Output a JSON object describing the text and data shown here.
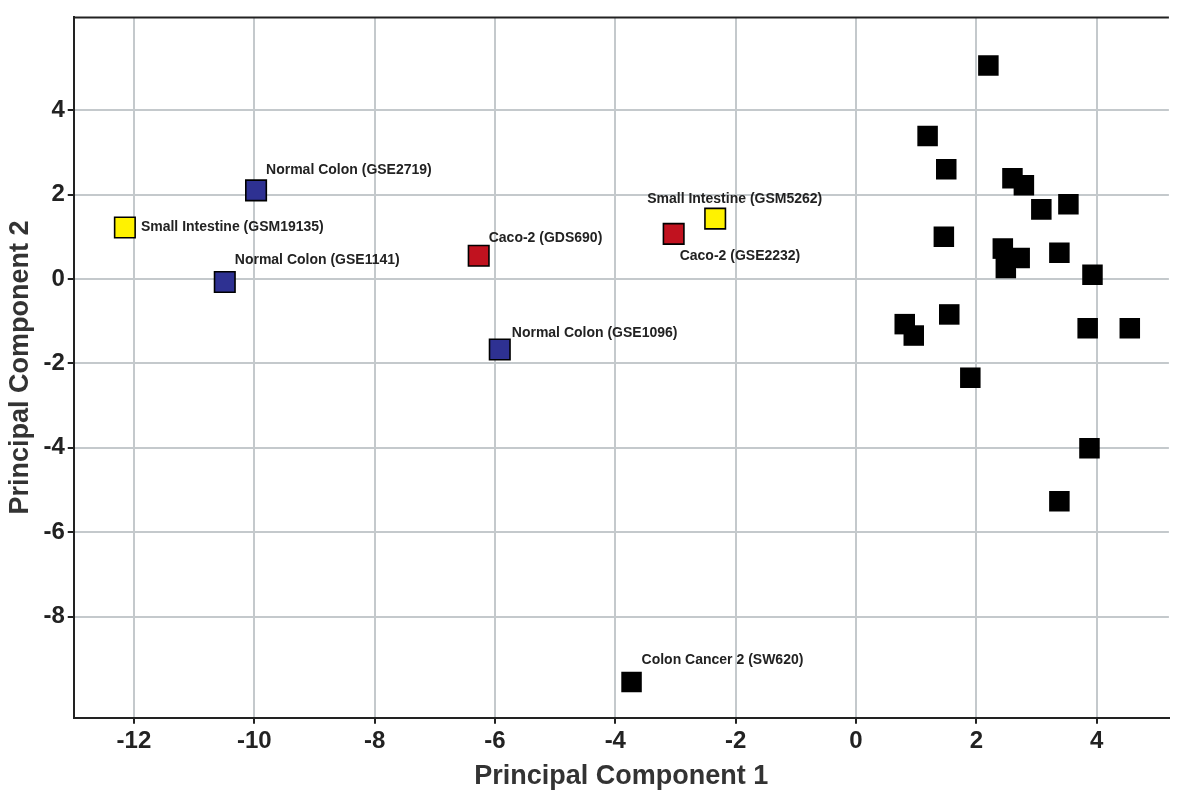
{
  "chart_data": {
    "type": "scatter",
    "xlabel": "Principal Component 1",
    "ylabel": "Principal Component 2",
    "xlim": [
      -13,
      5.2
    ],
    "ylim": [
      -10.4,
      6.2
    ],
    "xticks": [
      -12,
      -10,
      -8,
      -6,
      -4,
      -2,
      0,
      2,
      4
    ],
    "yticks": [
      -8,
      -6,
      -4,
      -2,
      0,
      2,
      4
    ],
    "grid": true,
    "legend": false,
    "marker": "square",
    "series": [
      {
        "color": "#fff200",
        "x": [
          -12.15,
          -2.34
        ],
        "values": [
          1.22,
          1.43
        ]
      },
      {
        "color": "#2e3192",
        "x": [
          -9.97,
          -10.49,
          -5.92
        ],
        "values": [
          2.1,
          -0.07,
          -1.67
        ]
      },
      {
        "color": "#c1121f",
        "x": [
          -6.27,
          -3.03
        ],
        "values": [
          0.55,
          1.07
        ]
      },
      {
        "color": "#000000",
        "x": [
          -3.73,
          2.2,
          1.19,
          1.5,
          2.6,
          2.79,
          3.53,
          3.08,
          1.46,
          2.44,
          2.72,
          2.49,
          3.38,
          3.93,
          0.81,
          0.96,
          1.55,
          3.85,
          4.55,
          1.9,
          3.88,
          3.38
        ],
        "values": [
          -9.55,
          5.06,
          3.39,
          2.6,
          2.39,
          2.22,
          1.77,
          1.65,
          1.0,
          0.72,
          0.5,
          0.26,
          0.62,
          0.1,
          -1.07,
          -1.34,
          -0.84,
          -1.17,
          -1.17,
          -2.34,
          -4.01,
          -5.27
        ]
      }
    ],
    "annotations": [
      {
        "text": "Small Intestine (GSM19135)",
        "x": -12.15,
        "y": 1.22
      },
      {
        "text": "Normal Colon (GSE2719)",
        "x": -9.97,
        "y": 2.1
      },
      {
        "text": "Normal Colon (GSE1141)",
        "x": -10.49,
        "y": -0.07
      },
      {
        "text": "Caco-2 (GDS690)",
        "x": -6.27,
        "y": 0.55
      },
      {
        "text": "Small Intestine (GSM5262)",
        "x": -2.34,
        "y": 1.43
      },
      {
        "text": "Caco-2 (GSE2232)",
        "x": -3.03,
        "y": 1.07
      },
      {
        "text": "Normal Colon (GSE1096)",
        "x": -5.92,
        "y": -1.67
      },
      {
        "text": "Colon Cancer 2 (SW620)",
        "x": -3.73,
        "y": -9.55
      }
    ]
  }
}
